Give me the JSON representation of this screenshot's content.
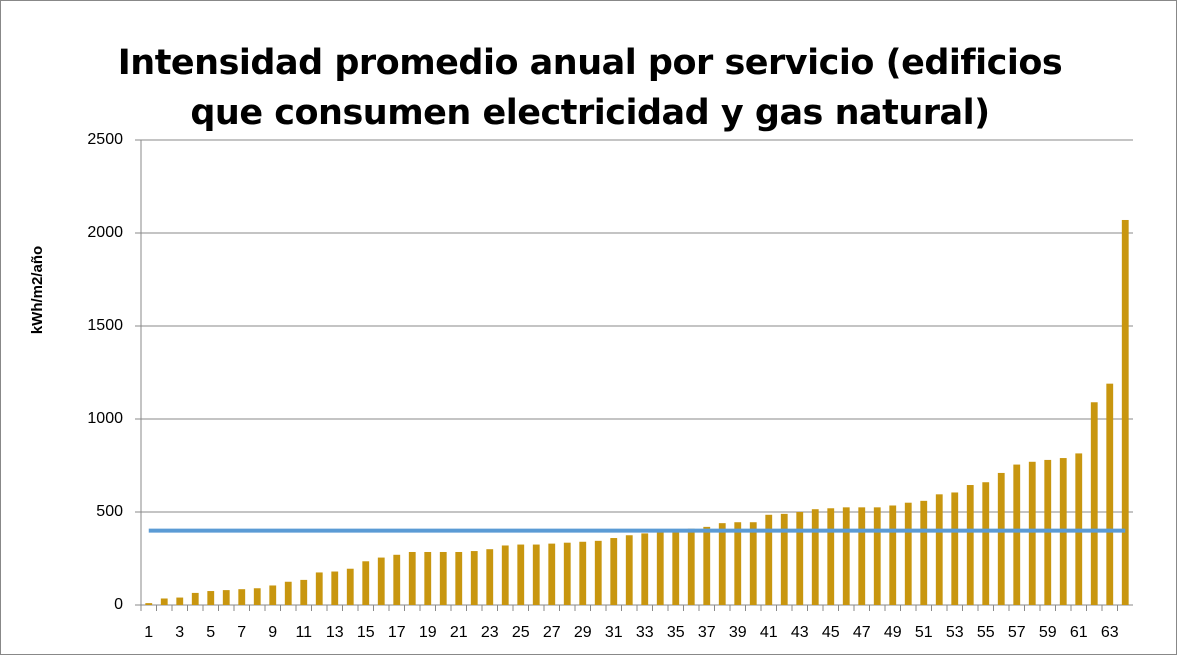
{
  "chart_data": {
    "type": "bar",
    "title": "Intensidad promedio anual por servicio (edificios que consumen electricidad y gas natural)",
    "y_label": "kWh/m2/año",
    "categories": [
      1,
      null,
      3,
      null,
      5,
      null,
      7,
      null,
      9,
      null,
      11,
      null,
      13,
      null,
      15,
      null,
      17,
      null,
      19,
      null,
      21,
      null,
      23,
      null,
      25,
      null,
      27,
      null,
      29,
      null,
      31,
      null,
      33,
      null,
      35,
      null,
      37,
      null,
      39,
      null,
      41,
      null,
      43,
      null,
      45,
      null,
      47,
      null,
      49,
      null,
      51,
      null,
      53,
      null,
      55,
      null,
      57,
      null,
      59,
      null,
      61,
      null,
      63,
      null
    ],
    "series": [
      {
        "type": "bar",
        "color": "#c8960f",
        "values": [
          10,
          35,
          40,
          65,
          75,
          80,
          85,
          90,
          105,
          125,
          135,
          175,
          180,
          195,
          235,
          255,
          270,
          285,
          285,
          285,
          285,
          290,
          300,
          320,
          325,
          325,
          330,
          335,
          340,
          345,
          360,
          375,
          385,
          390,
          395,
          410,
          420,
          440,
          445,
          445,
          485,
          490,
          500,
          515,
          520,
          525,
          525,
          525,
          535,
          550,
          560,
          595,
          605,
          645,
          660,
          710,
          755,
          770,
          780,
          790,
          815,
          1090,
          1190,
          2070
        ]
      },
      {
        "type": "line",
        "color": "#5b9bd5",
        "values": [
          400,
          400,
          400,
          400,
          400,
          400,
          400,
          400,
          400,
          400,
          400,
          400,
          400,
          400,
          400,
          400,
          400,
          400,
          400,
          400,
          400,
          400,
          400,
          400,
          400,
          400,
          400,
          400,
          400,
          400,
          400,
          400,
          400,
          400,
          400,
          400,
          400,
          400,
          400,
          400,
          400,
          400,
          400,
          400,
          400,
          400,
          400,
          400,
          400,
          400,
          400,
          400,
          400,
          400,
          400,
          400,
          400,
          400,
          400,
          400,
          400,
          400,
          400,
          400
        ]
      }
    ],
    "ylim": [
      0,
      2500
    ],
    "yticks": [
      0,
      500,
      1000,
      1500,
      2000,
      2500
    ],
    "grid": true
  }
}
